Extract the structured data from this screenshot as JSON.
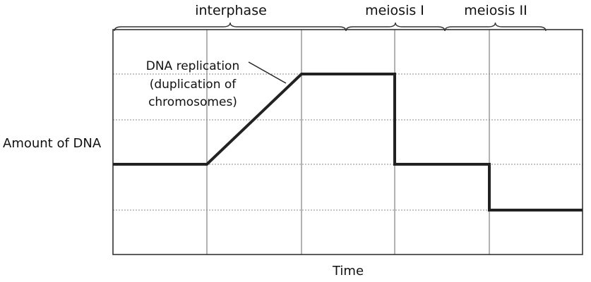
{
  "chart_data": {
    "type": "line",
    "title": "",
    "xlabel": "Time",
    "ylabel": "Amount of DNA",
    "phases": [
      "interphase",
      "meiosis I",
      "meiosis II"
    ],
    "annotation": [
      "DNA replication",
      "(duplication of",
      "chromosomes)"
    ],
    "grid": true,
    "xlim": [
      0,
      5
    ],
    "ylim": [
      0,
      5
    ],
    "series": [
      {
        "x": [
          0,
          1,
          2,
          3,
          3,
          4,
          4,
          5
        ],
        "y": [
          2,
          2,
          4,
          4,
          2,
          2,
          1,
          1
        ]
      }
    ]
  }
}
